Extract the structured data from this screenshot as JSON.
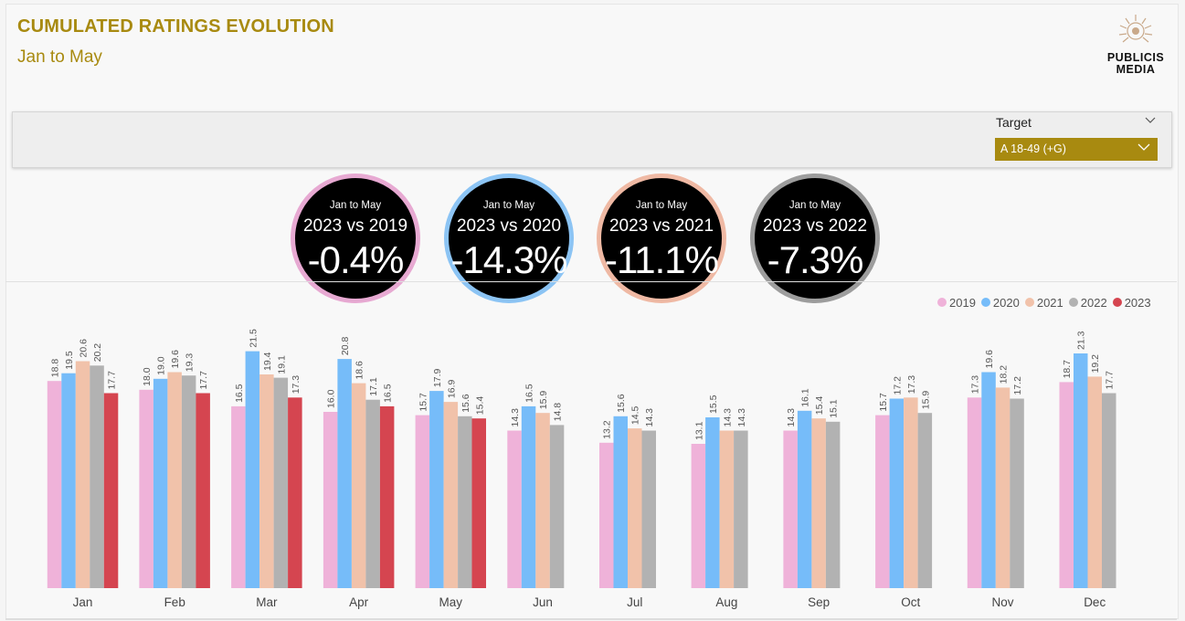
{
  "header": {
    "title": "CUMULATED RATINGS EVOLUTION",
    "subtitle": "Jan to May",
    "accent_color": "#a88a10"
  },
  "logo": {
    "line1": "PUBLICIS",
    "line2": "MEDIA",
    "icon": "lion-emblem-icon"
  },
  "slicer": {
    "label": "Target",
    "selected": "A 18-49 (+G)",
    "dropdown_color": "#a88a10"
  },
  "kpis": [
    {
      "period": "Jan to May",
      "compare": "2023 vs 2019",
      "value": "-0.4%",
      "ring_color": "#e7a9d2"
    },
    {
      "period": "Jan to May",
      "compare": "2023 vs 2020",
      "value": "-14.3%",
      "ring_color": "#8cc4f4"
    },
    {
      "period": "Jan to May",
      "compare": "2023 vs 2021",
      "value": "-11.1%",
      "ring_color": "#efb9a4"
    },
    {
      "period": "Jan to May",
      "compare": "2023 vs 2022",
      "value": "-7.3%",
      "ring_color": "#9d9d9d"
    }
  ],
  "chart_data": {
    "type": "bar",
    "categories": [
      "Jan",
      "Feb",
      "Mar",
      "Apr",
      "May",
      "Jun",
      "Jul",
      "Aug",
      "Sep",
      "Oct",
      "Nov",
      "Dec"
    ],
    "series": [
      {
        "name": "2019",
        "color": "#efb2d9",
        "values": [
          18.8,
          18.0,
          16.5,
          16.0,
          15.7,
          14.3,
          13.2,
          13.1,
          14.3,
          15.7,
          17.3,
          18.7
        ]
      },
      {
        "name": "2020",
        "color": "#76bcf9",
        "values": [
          19.5,
          19.0,
          21.5,
          20.8,
          17.9,
          16.5,
          15.6,
          15.5,
          16.1,
          17.2,
          19.6,
          21.3
        ]
      },
      {
        "name": "2021",
        "color": "#f1c2aa",
        "values": [
          20.6,
          19.6,
          19.4,
          18.6,
          16.9,
          15.9,
          14.5,
          14.3,
          15.4,
          17.3,
          18.2,
          19.2
        ]
      },
      {
        "name": "2022",
        "color": "#b2b2b2",
        "values": [
          20.2,
          19.3,
          19.1,
          17.1,
          15.6,
          14.8,
          14.3,
          14.3,
          15.1,
          15.9,
          17.2,
          17.7
        ]
      },
      {
        "name": "2023",
        "color": "#d54550",
        "values": [
          17.7,
          17.7,
          17.3,
          16.5,
          15.4,
          null,
          null,
          null,
          null,
          null,
          null,
          null
        ]
      }
    ],
    "ylim": [
      0,
      21.8
    ],
    "data_labels": true,
    "legend_position": "top-right",
    "grid": false
  }
}
